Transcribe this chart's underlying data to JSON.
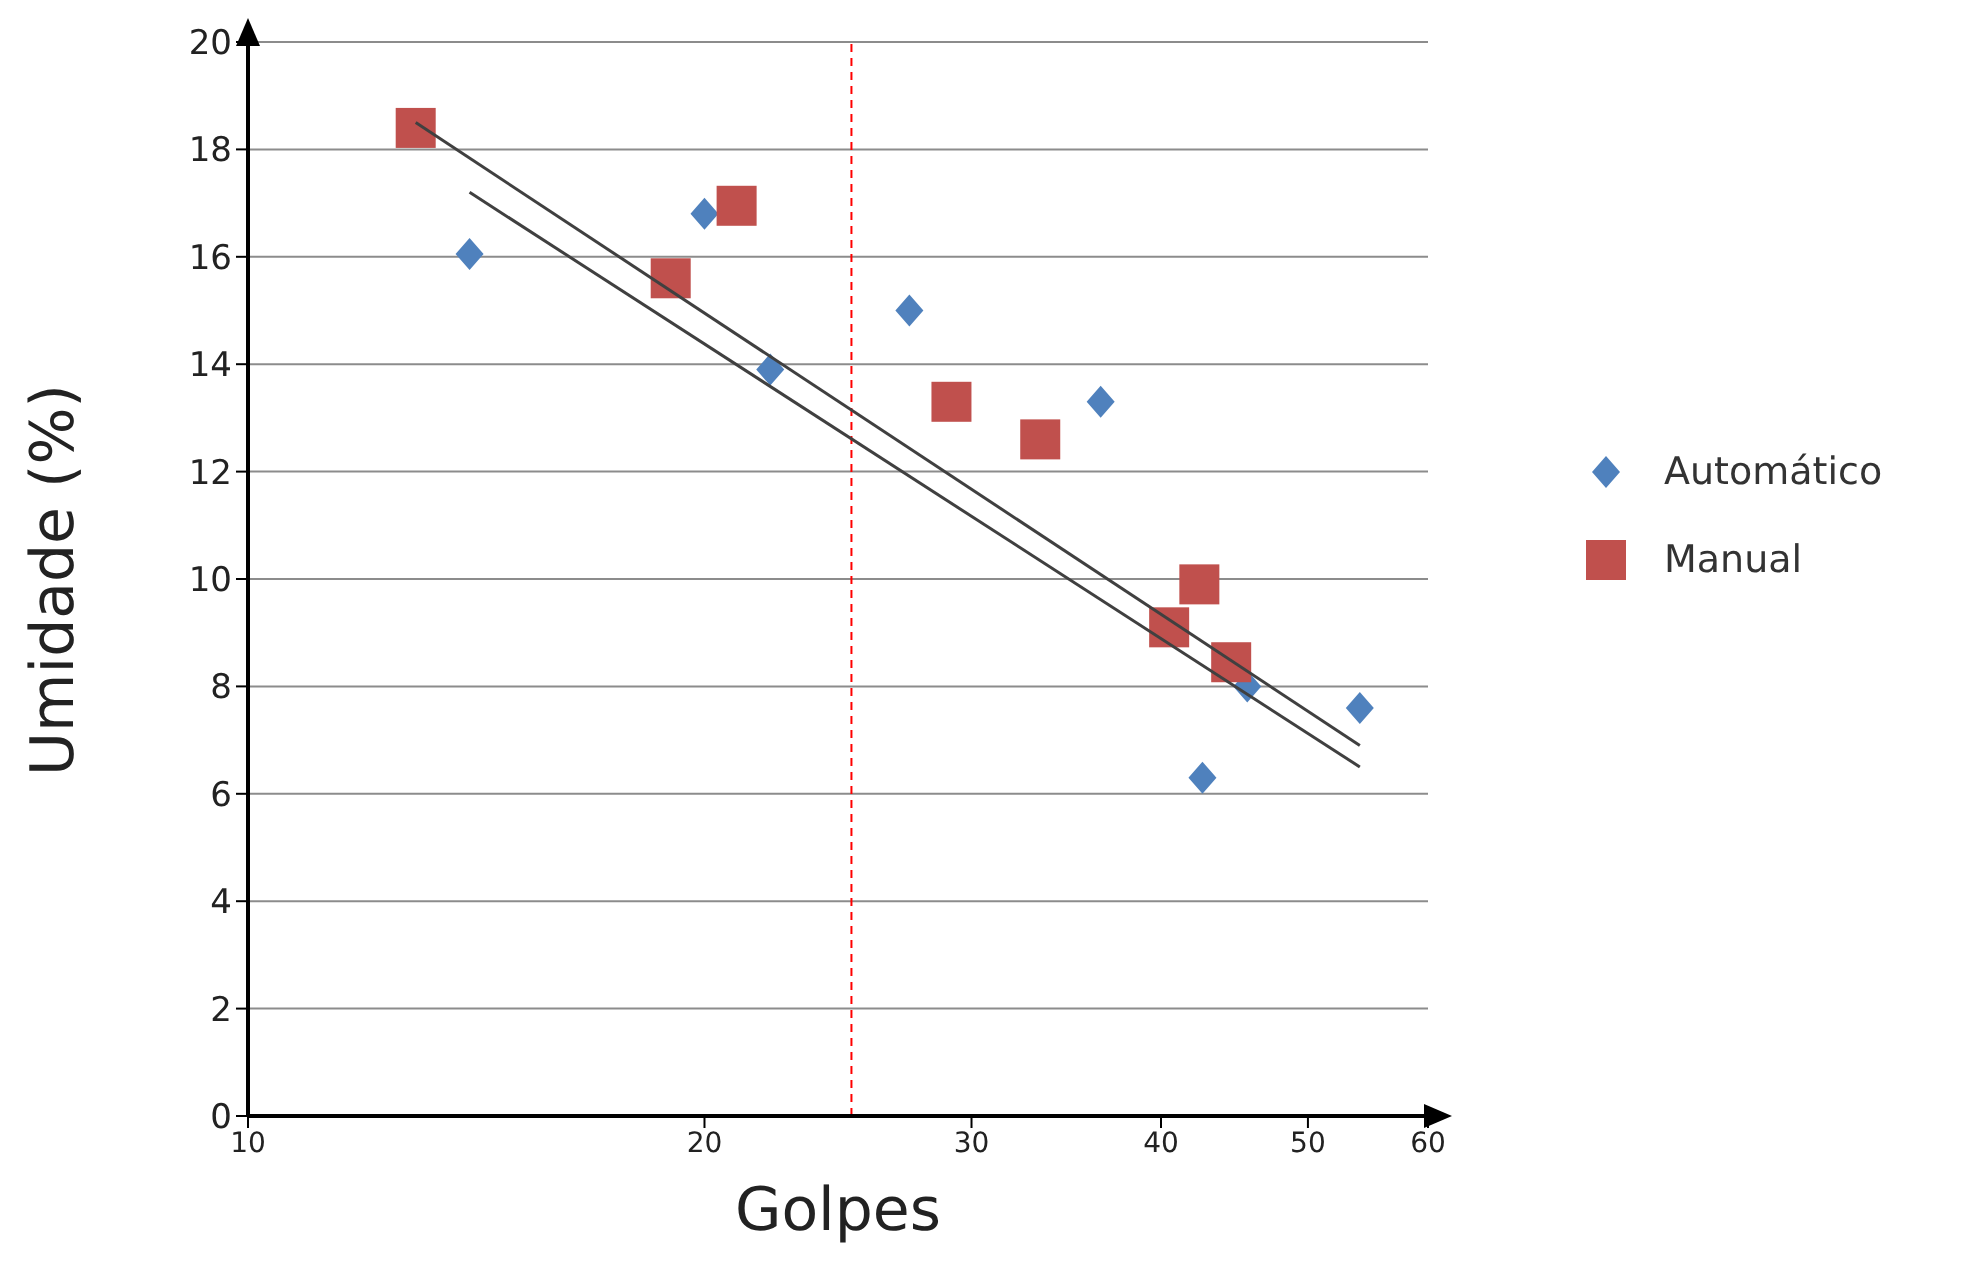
{
  "chart_data": {
    "type": "scatter",
    "xlabel": "Golpes",
    "ylabel": "Umidade (%)",
    "log": "x",
    "xlim": [
      10,
      60
    ],
    "xticks": [
      10,
      20,
      30,
      40,
      50,
      60
    ],
    "ylim": [
      0,
      20
    ],
    "yticks": [
      0,
      2,
      4,
      6,
      8,
      10,
      12,
      14,
      16,
      18,
      20
    ],
    "grid": "y",
    "legend": "right",
    "series": [
      {
        "name": "Automático",
        "color": "#4f81bd",
        "marker": "diamond",
        "x": [
          14.0,
          20.0,
          22.1,
          27.3,
          36.5,
          42.6,
          45.6,
          54.1
        ],
        "values": [
          16.05,
          16.8,
          13.9,
          15.0,
          13.3,
          6.3,
          8.0,
          7.6
        ]
      },
      {
        "name": "Manual",
        "color": "#c0504d",
        "marker": "square",
        "x": [
          12.9,
          19.0,
          21.0,
          29.1,
          33.3,
          40.5,
          42.4,
          44.5
        ],
        "values": [
          18.4,
          15.6,
          16.95,
          13.3,
          12.6,
          9.1,
          9.9,
          8.45
        ]
      },
      {
        "type": "line",
        "color": "#404040",
        "x": [
          12.9,
          54.1
        ],
        "values": [
          18.5,
          6.9
        ]
      },
      {
        "type": "line",
        "color": "#404040",
        "x": [
          14.0,
          54.1
        ],
        "values": [
          17.2,
          6.5
        ]
      }
    ],
    "ref_lines": [
      {
        "axis": "x",
        "value": 25,
        "color": "#ff0000",
        "line_style": "dashed"
      }
    ]
  }
}
